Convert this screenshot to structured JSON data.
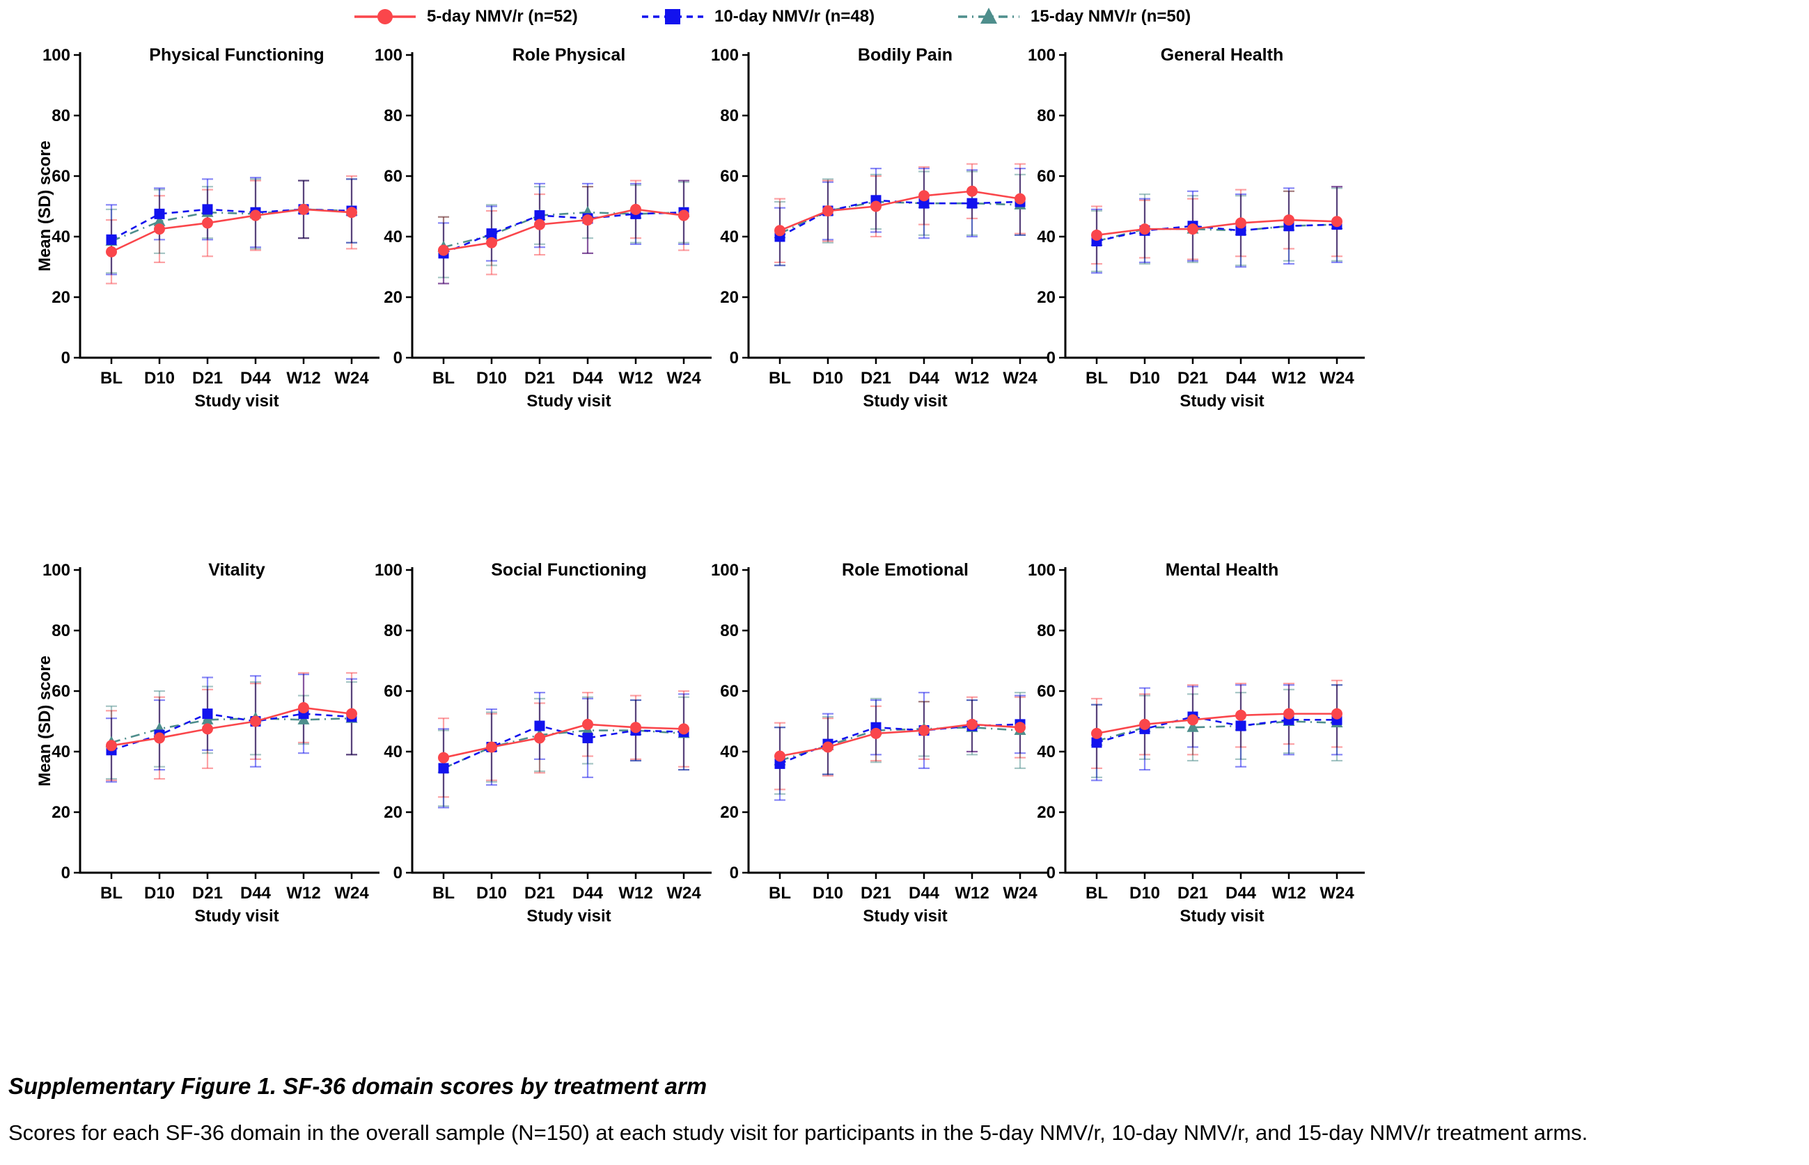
{
  "legend": {
    "items": [
      {
        "label": "5-day NMV/r (n=52)",
        "color": "#FA464B",
        "marker": "circle",
        "line": "solid"
      },
      {
        "label": "10-day NMV/r (n=48)",
        "color": "#1212EE",
        "marker": "square",
        "line": "dashed"
      },
      {
        "label": "15-day NMV/r (n=50)",
        "color": "#4E8E8C",
        "marker": "triangle",
        "line": "dashdot"
      }
    ]
  },
  "axes": {
    "ylabel": "Mean (SD) score",
    "xlabel": "Study visit",
    "categories": [
      "BL",
      "D10",
      "D21",
      "D44",
      "W12",
      "W24"
    ],
    "ylim": [
      0,
      100
    ],
    "yticks": [
      0,
      20,
      40,
      60,
      80,
      100
    ],
    "grid": false
  },
  "chart_data": [
    {
      "type": "line",
      "title": "Physical Functioning",
      "slug": "physical-functioning",
      "categories": [
        "BL",
        "D10",
        "D21",
        "D44",
        "W12",
        "W24"
      ],
      "series": [
        {
          "name": "5-day NMV/r (n=52)",
          "values": [
            35,
            42.5,
            44.5,
            47,
            49,
            48
          ],
          "sd": [
            10.5,
            11,
            11,
            11.5,
            9.5,
            12
          ]
        },
        {
          "name": "10-day NMV/r (n=48)",
          "values": [
            39,
            47.5,
            49,
            48,
            49,
            48.5
          ],
          "sd": [
            11.5,
            8.5,
            10,
            11.5,
            9.5,
            10.5
          ]
        },
        {
          "name": "15-day NMV/r (n=50)",
          "values": [
            38.5,
            45,
            48,
            47.5,
            49,
            48.5
          ],
          "sd": [
            10.5,
            10.5,
            8.5,
            11.5,
            9.5,
            10.5
          ]
        }
      ]
    },
    {
      "type": "line",
      "title": "Role Physical",
      "slug": "role-physical",
      "categories": [
        "BL",
        "D10",
        "D21",
        "D44",
        "W12",
        "W24"
      ],
      "series": [
        {
          "name": "5-day NMV/r (n=52)",
          "values": [
            35.5,
            38,
            44,
            45.5,
            49,
            47
          ],
          "sd": [
            11,
            10.5,
            10,
            11,
            9.5,
            11.5
          ]
        },
        {
          "name": "10-day NMV/r (n=48)",
          "values": [
            34.5,
            41,
            47,
            46,
            47.5,
            48
          ],
          "sd": [
            10,
            9,
            10.5,
            11.5,
            10,
            10.5
          ]
        },
        {
          "name": "15-day NMV/r (n=50)",
          "values": [
            36.5,
            40.5,
            47,
            48,
            47.5,
            48
          ],
          "sd": [
            10,
            10,
            9.5,
            8.5,
            9.5,
            10
          ]
        }
      ]
    },
    {
      "type": "line",
      "title": "Bodily Pain",
      "slug": "bodily-pain",
      "categories": [
        "BL",
        "D10",
        "D21",
        "D44",
        "W12",
        "W24"
      ],
      "series": [
        {
          "name": "5-day NMV/r (n=52)",
          "values": [
            42,
            48.5,
            50,
            53.5,
            55,
            52.5
          ],
          "sd": [
            10.5,
            10,
            10,
            9.5,
            9,
            11.5
          ]
        },
        {
          "name": "10-day NMV/r (n=48)",
          "values": [
            40,
            48.5,
            52,
            51,
            51,
            51.5
          ],
          "sd": [
            9.5,
            9.5,
            10.5,
            11.5,
            11,
            11
          ]
        },
        {
          "name": "15-day NMV/r (n=50)",
          "values": [
            41,
            48.5,
            51.5,
            51,
            51,
            50.5
          ],
          "sd": [
            10.5,
            10.5,
            9,
            10.5,
            10.5,
            10
          ]
        }
      ]
    },
    {
      "type": "line",
      "title": "General Health",
      "slug": "general-health",
      "categories": [
        "BL",
        "D10",
        "D21",
        "D44",
        "W12",
        "W24"
      ],
      "series": [
        {
          "name": "5-day NMV/r (n=52)",
          "values": [
            40.5,
            42.5,
            42.5,
            44.5,
            45.5,
            45
          ],
          "sd": [
            9.5,
            9.5,
            10,
            11,
            9.5,
            11.5
          ]
        },
        {
          "name": "10-day NMV/r (n=48)",
          "values": [
            38.5,
            42,
            43.5,
            42,
            43.5,
            44
          ],
          "sd": [
            10.5,
            10.5,
            11.5,
            12,
            12.5,
            12.5
          ]
        },
        {
          "name": "15-day NMV/r (n=50)",
          "values": [
            38.5,
            42.5,
            42.5,
            42,
            43.5,
            44
          ],
          "sd": [
            10,
            11.5,
            11,
            11.5,
            11.5,
            12
          ]
        }
      ]
    },
    {
      "type": "line",
      "title": "Vitality",
      "slug": "vitality",
      "categories": [
        "BL",
        "D10",
        "D21",
        "D44",
        "W12",
        "W24"
      ],
      "series": [
        {
          "name": "5-day NMV/r (n=52)",
          "values": [
            42,
            44.5,
            47.5,
            50,
            54.5,
            52.5
          ],
          "sd": [
            11.5,
            13.5,
            13,
            12.5,
            11.5,
            13.5
          ]
        },
        {
          "name": "10-day NMV/r (n=48)",
          "values": [
            40.5,
            45.5,
            52.5,
            50,
            52.5,
            51.5
          ],
          "sd": [
            10.5,
            11.5,
            12,
            15,
            13,
            12.5
          ]
        },
        {
          "name": "15-day NMV/r (n=50)",
          "values": [
            43,
            47.5,
            50.5,
            51,
            50.5,
            51
          ],
          "sd": [
            12,
            12.5,
            11,
            12,
            8,
            12
          ]
        }
      ]
    },
    {
      "type": "line",
      "title": "Social Functioning",
      "slug": "social-functioning",
      "categories": [
        "BL",
        "D10",
        "D21",
        "D44",
        "W12",
        "W24"
      ],
      "series": [
        {
          "name": "5-day NMV/r (n=52)",
          "values": [
            38,
            41.5,
            44.5,
            49,
            48,
            47.5
          ],
          "sd": [
            13,
            11,
            11.5,
            10.5,
            10.5,
            12.5
          ]
        },
        {
          "name": "10-day NMV/r (n=48)",
          "values": [
            34.5,
            41.5,
            48.5,
            44.5,
            47,
            46.5
          ],
          "sd": [
            13,
            12.5,
            11,
            13,
            10,
            12.5
          ]
        },
        {
          "name": "15-day NMV/r (n=50)",
          "values": [
            34.5,
            41.5,
            45.5,
            47,
            47,
            46
          ],
          "sd": [
            12.5,
            11.5,
            12,
            11,
            10,
            12
          ]
        }
      ]
    },
    {
      "type": "line",
      "title": "Role Emotional",
      "slug": "role-emotional",
      "categories": [
        "BL",
        "D10",
        "D21",
        "D44",
        "W12",
        "W24"
      ],
      "series": [
        {
          "name": "5-day NMV/r (n=52)",
          "values": [
            38.5,
            41.5,
            46,
            47,
            49,
            48
          ],
          "sd": [
            11,
            9.5,
            9,
            9.5,
            9,
            10
          ]
        },
        {
          "name": "10-day NMV/r (n=48)",
          "values": [
            36,
            42.5,
            48,
            47,
            48.5,
            49
          ],
          "sd": [
            12,
            10,
            9,
            12.5,
            8.5,
            9.5
          ]
        },
        {
          "name": "15-day NMV/r (n=50)",
          "values": [
            37,
            42,
            47,
            47.5,
            48,
            47
          ],
          "sd": [
            11,
            9.5,
            10.5,
            9,
            9,
            12.5
          ]
        }
      ]
    },
    {
      "type": "line",
      "title": "Mental Health",
      "slug": "mental-health",
      "categories": [
        "BL",
        "D10",
        "D21",
        "D44",
        "W12",
        "W24"
      ],
      "series": [
        {
          "name": "5-day NMV/r (n=52)",
          "values": [
            46,
            49,
            50.5,
            52,
            52.5,
            52.5
          ],
          "sd": [
            11.5,
            10,
            11.5,
            10.5,
            10,
            11
          ]
        },
        {
          "name": "10-day NMV/r (n=48)",
          "values": [
            43,
            47.5,
            51.5,
            48.5,
            50.5,
            50.5
          ],
          "sd": [
            12.5,
            13.5,
            10,
            13.5,
            11.5,
            11.5
          ]
        },
        {
          "name": "15-day NMV/r (n=50)",
          "values": [
            43.5,
            48,
            48,
            48.5,
            50,
            49.5
          ],
          "sd": [
            12,
            10.5,
            11,
            11,
            10.5,
            12.5
          ]
        }
      ]
    }
  ],
  "caption": {
    "title": "Supplementary Figure 1. SF-36 domain scores by treatment arm",
    "body": "Scores for each SF-36 domain in the overall sample (N=150) at each study visit for participants in the 5-day NMV/r, 10-day NMV/r, and 15-day NMV/r treatment arms."
  }
}
